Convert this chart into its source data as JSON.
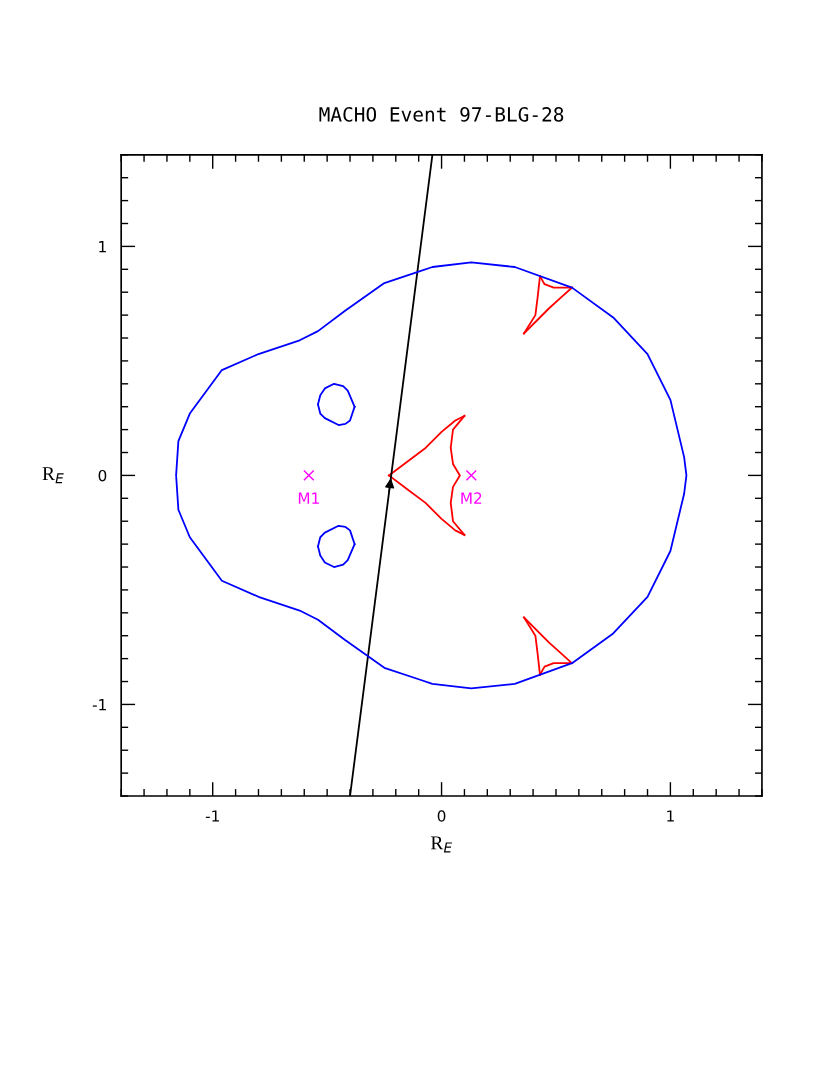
{
  "chart_data": {
    "type": "line",
    "title": "MACHO Event 97-BLG-28",
    "xlabel": "R$_{E}$",
    "ylabel": "R$_{E}$",
    "xlim": [
      -1.4,
      1.4
    ],
    "ylim": [
      -1.4,
      1.4
    ],
    "xticks": [
      {
        "value": -1.4,
        "label": null
      },
      {
        "value": -1.3,
        "label": null
      },
      {
        "value": -1.2,
        "label": null
      },
      {
        "value": -1.1,
        "label": null
      },
      -1,
      {
        "value": -0.9,
        "label": null
      },
      {
        "value": -0.8,
        "label": null
      },
      {
        "value": -0.7,
        "label": null
      },
      {
        "value": -0.6,
        "label": null
      },
      {
        "value": -0.5,
        "label": null
      },
      {
        "value": -0.4,
        "label": null
      },
      {
        "value": -0.3,
        "label": null
      },
      {
        "value": -0.2,
        "label": null
      },
      {
        "value": -0.1,
        "label": null
      },
      0,
      {
        "value": 0.1,
        "label": null
      },
      {
        "value": 0.2,
        "label": null
      },
      {
        "value": 0.3,
        "label": null
      },
      {
        "value": 0.4,
        "label": null
      },
      {
        "value": 0.5,
        "label": null
      },
      {
        "value": 0.6,
        "label": null
      },
      {
        "value": 0.7,
        "label": null
      },
      {
        "value": 0.8,
        "label": null
      },
      {
        "value": 0.9,
        "label": null
      },
      1,
      {
        "value": 1.1,
        "label": null
      },
      {
        "value": 1.2,
        "label": null
      },
      {
        "value": 1.3,
        "label": null
      },
      {
        "value": 1.4,
        "label": null
      }
    ],
    "yticks": [
      {
        "value": -1.4,
        "label": null
      },
      {
        "value": -1.3,
        "label": null
      },
      {
        "value": -1.2,
        "label": null
      },
      {
        "value": -1.1,
        "label": null
      },
      -1,
      {
        "value": -0.9,
        "label": null
      },
      {
        "value": -0.8,
        "label": null
      },
      {
        "value": -0.7,
        "label": null
      },
      {
        "value": -0.6,
        "label": null
      },
      {
        "value": -0.5,
        "label": null
      },
      {
        "value": -0.4,
        "label": null
      },
      {
        "value": -0.3,
        "label": null
      },
      {
        "value": -0.2,
        "label": null
      },
      {
        "value": -0.1,
        "label": null
      },
      0,
      {
        "value": 0.1,
        "label": null
      },
      {
        "value": 0.2,
        "label": null
      },
      {
        "value": 0.3,
        "label": null
      },
      {
        "value": 0.4,
        "label": null
      },
      {
        "value": 0.5,
        "label": null
      },
      {
        "value": 0.6,
        "label": null
      },
      {
        "value": 0.7,
        "label": null
      },
      {
        "value": 0.8,
        "label": null
      },
      {
        "value": 0.9,
        "label": null
      },
      1,
      {
        "value": 1.1,
        "label": null
      },
      {
        "value": 1.2,
        "label": null
      },
      {
        "value": 1.3,
        "label": null
      },
      {
        "value": 1.4,
        "label": null
      }
    ],
    "grid": false,
    "legend": false,
    "line_style": "solid",
    "series": [
      {
        "color": "#0000ff",
        "x": [
          -0.54,
          -0.53,
          -0.51,
          -0.47,
          -0.43,
          -0.41,
          -0.38
        ],
        "values": [
          0.31,
          0.35,
          0.38,
          0.4,
          0.39,
          0.37,
          0.3
        ]
      },
      {
        "color": "#0000ff",
        "x": [
          -0.54,
          -0.53,
          -0.51,
          -0.45,
          -0.42,
          -0.4,
          -0.38
        ],
        "values": [
          0.31,
          0.27,
          0.25,
          0.22,
          0.225,
          0.24,
          0.3
        ]
      },
      {
        "color": "#0000ff",
        "x": [
          -0.54,
          -0.53,
          -0.51,
          -0.47,
          -0.43,
          -0.41,
          -0.38
        ],
        "values": [
          -0.31,
          -0.35,
          -0.38,
          -0.4,
          -0.39,
          -0.37,
          -0.3
        ]
      },
      {
        "color": "#0000ff",
        "x": [
          -0.54,
          -0.53,
          -0.51,
          -0.45,
          -0.42,
          -0.4,
          -0.38
        ],
        "values": [
          -0.31,
          -0.27,
          -0.25,
          -0.22,
          -0.225,
          -0.24,
          -0.3
        ]
      },
      {
        "color": "#ff0000",
        "x": [
          -0.23,
          -0.15,
          -0.07,
          0.0,
          0.06,
          0.1
        ],
        "values": [
          0,
          0.06,
          0.12,
          0.19,
          0.24,
          0.26
        ]
      },
      {
        "color": "#ff0000",
        "x": [
          0.1,
          0.05,
          0.04,
          0.05,
          0.08,
          0.05,
          0.04,
          0.05,
          0.1
        ],
        "values": [
          0.26,
          0.2,
          0.12,
          0.05,
          0,
          -0.05,
          -0.12,
          -0.2,
          -0.26
        ]
      },
      {
        "color": "#ff0000",
        "x": [
          -0.23,
          -0.15,
          -0.07,
          0.0,
          0.06,
          0.1
        ],
        "values": [
          0,
          -0.06,
          -0.12,
          -0.19,
          -0.24,
          -0.26
        ]
      },
      {
        "color": "#ff0000",
        "x": [
          0.43,
          0.45,
          0.49,
          0.57
        ],
        "values": [
          0.87,
          0.835,
          0.82,
          0.82
        ]
      },
      {
        "color": "#ff0000",
        "x": [
          0.36,
          0.47,
          0.52,
          0.57
        ],
        "values": [
          0.62,
          0.73,
          0.775,
          0.82
        ]
      },
      {
        "color": "#ff0000",
        "x": [
          0.36,
          0.41,
          0.42,
          0.43
        ],
        "values": [
          0.62,
          0.7,
          0.78,
          0.87
        ]
      },
      {
        "color": "#ff0000",
        "x": [
          0.43,
          0.45,
          0.49,
          0.57
        ],
        "values": [
          -0.87,
          -0.835,
          -0.82,
          -0.82
        ]
      },
      {
        "color": "#ff0000",
        "x": [
          0.36,
          0.47,
          0.52,
          0.57
        ],
        "values": [
          -0.62,
          -0.73,
          -0.775,
          -0.82
        ]
      },
      {
        "color": "#ff0000",
        "x": [
          0.36,
          0.41,
          0.42,
          0.43
        ],
        "values": [
          -0.62,
          -0.7,
          -0.78,
          -0.87
        ]
      },
      {
        "color": "#000000",
        "x": [
          -0.4,
          -0.04
        ],
        "values": [
          -1.4,
          1.4
        ]
      },
      {
        "type": "scatter",
        "name": "M1",
        "color": "#ff00ff",
        "marker": "cross",
        "x": [
          -0.58
        ],
        "values": [
          0
        ]
      },
      {
        "type": "scatter",
        "name": "M2",
        "color": "#ff00ff",
        "marker": "cross",
        "x": [
          0.13
        ],
        "values": [
          0
        ]
      }
    ]
  }
}
